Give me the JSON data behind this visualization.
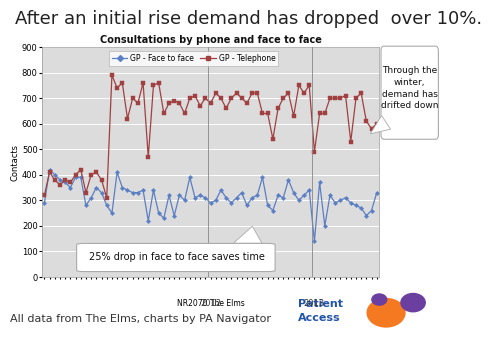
{
  "title": "After an initial rise demand has dropped  over 10%.",
  "chart_title": "Consultations by phone and face to face",
  "xlabel": "NR2070 The Elms",
  "ylabel": "Contacts",
  "ylim": [
    0,
    900
  ],
  "yticks": [
    0,
    100,
    200,
    300,
    400,
    500,
    600,
    700,
    800,
    900
  ],
  "legend_face": "GP - Face to face",
  "legend_tel": "GP - Telephone",
  "face_color": "#5B7FC4",
  "tel_color": "#A04040",
  "bg_color": "#DCDCDC",
  "chart_bg": "#FFFFFF",
  "footer_text": "All data from The Elms, charts by PA Navigator",
  "annotation_winter": "Through the\nwinter,\ndemand has\ndrifted down",
  "annotation_drop": "25% drop in face to face saves time",
  "face_to_face": [
    290,
    420,
    400,
    380,
    370,
    350,
    390,
    390,
    280,
    310,
    350,
    330,
    280,
    250,
    410,
    350,
    340,
    330,
    330,
    340,
    220,
    340,
    250,
    230,
    320,
    240,
    320,
    300,
    390,
    310,
    320,
    310,
    290,
    300,
    340,
    310,
    290,
    310,
    330,
    280,
    310,
    320,
    390,
    280,
    260,
    320,
    310,
    380,
    330,
    300,
    320,
    340,
    140,
    370,
    200,
    320,
    290,
    300,
    310,
    290,
    280,
    270,
    240,
    260,
    330
  ],
  "telephone": [
    320,
    410,
    380,
    360,
    380,
    370,
    400,
    420,
    330,
    400,
    410,
    380,
    310,
    790,
    740,
    760,
    620,
    700,
    680,
    760,
    470,
    750,
    760,
    640,
    680,
    690,
    680,
    640,
    700,
    710,
    670,
    700,
    680,
    720,
    700,
    660,
    700,
    720,
    700,
    680,
    720,
    720,
    640,
    640,
    540,
    660,
    700,
    720,
    630,
    750,
    720,
    750,
    490,
    640,
    640,
    700,
    700,
    700,
    710,
    530,
    700,
    720,
    610,
    580,
    600
  ],
  "year2012_idx": 32,
  "year2013_idx": 52,
  "title_fontsize": 13,
  "footer_fontsize": 8,
  "chart_title_fontsize": 7,
  "ylabel_fontsize": 6,
  "ytick_fontsize": 6,
  "legend_fontsize": 5.5
}
